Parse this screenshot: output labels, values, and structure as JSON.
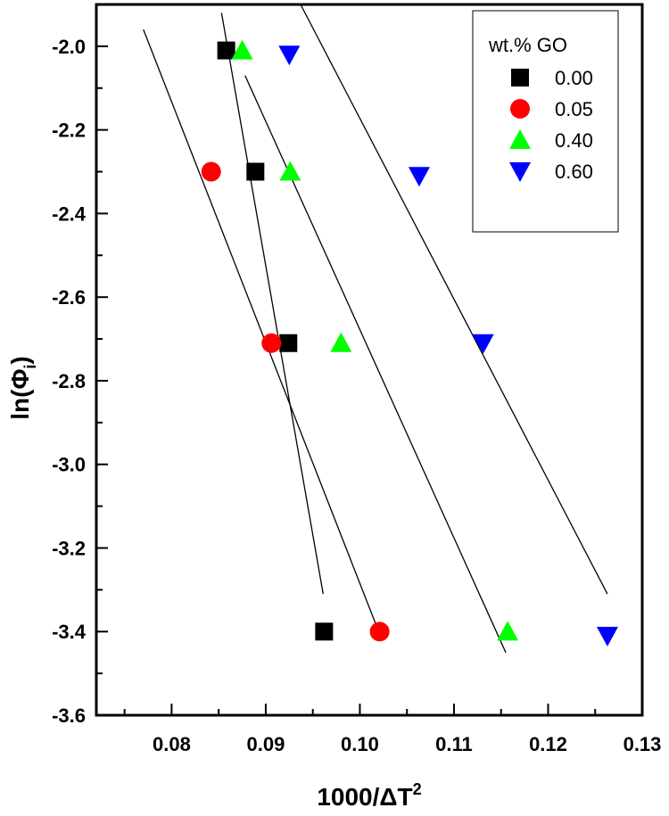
{
  "chart_data": {
    "type": "scatter",
    "title": "",
    "xlabel": "1000/ΔT",
    "xlabel_sup": "2",
    "ylabel": "ln(Φ",
    "ylabel_sub": "i",
    "ylabel_close": ")",
    "xlim": [
      0.072,
      0.13
    ],
    "ylim": [
      -3.6,
      -1.9
    ],
    "xticks": [
      "0.08",
      "0.09",
      "0.10",
      "0.11",
      "0.12",
      "0.13"
    ],
    "yticks": [
      "-2.0",
      "-2.2",
      "-2.4",
      "-2.6",
      "-2.8",
      "-3.0",
      "-3.2",
      "-3.4",
      "-3.6"
    ],
    "grid": false,
    "legend": {
      "title": "wt.% GO",
      "placement": "top-right"
    },
    "series": [
      {
        "name": "0.00",
        "marker": "square",
        "color": "#000000",
        "x": [
          0.0858,
          0.0889,
          0.0924,
          0.0962
        ],
        "y": [
          -2.01,
          -2.3,
          -2.71,
          -3.4
        ],
        "fit": {
          "x": [
            0.0853,
            0.0961
          ],
          "y": [
            -1.92,
            -3.31
          ]
        }
      },
      {
        "name": "0.05",
        "marker": "circle",
        "color": "#ff0000",
        "x": [
          0.0842,
          0.0906,
          0.1021
        ],
        "y": [
          -2.3,
          -2.71,
          -3.4
        ],
        "fit": {
          "x": [
            0.077,
            0.102
          ],
          "y": [
            -1.96,
            -3.4
          ]
        }
      },
      {
        "name": "0.40",
        "marker": "triangle-up",
        "color": "#00ff00",
        "x": [
          0.0875,
          0.0926,
          0.098,
          0.1157
        ],
        "y": [
          -2.01,
          -2.3,
          -2.71,
          -3.4
        ],
        "fit": {
          "x": [
            0.0878,
            0.1155
          ],
          "y": [
            -2.07,
            -3.45
          ]
        }
      },
      {
        "name": "0.60",
        "marker": "triangle-down",
        "color": "#0000ff",
        "x": [
          0.0925,
          0.1063,
          0.1131,
          0.1263
        ],
        "y": [
          -2.02,
          -2.31,
          -2.71,
          -3.41
        ],
        "fit": {
          "x": [
            0.0937,
            0.1263
          ],
          "y": [
            -1.9,
            -3.31
          ]
        }
      }
    ]
  }
}
